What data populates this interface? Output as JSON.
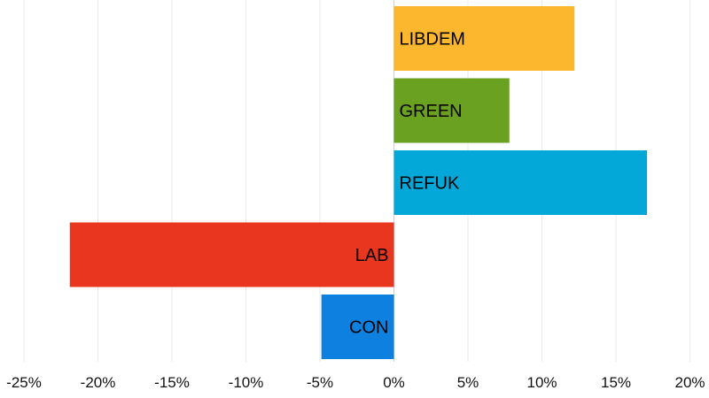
{
  "chart_data": {
    "type": "bar",
    "orientation": "horizontal",
    "title": "",
    "xlabel": "",
    "ylabel": "",
    "categories": [
      "LIBDEM",
      "GREEN",
      "REFUK",
      "LAB",
      "CON"
    ],
    "values": [
      12.2,
      7.8,
      17.1,
      -21.9,
      -4.9
    ],
    "colors": [
      "#fdb72f",
      "#6aa121",
      "#04a8d8",
      "#e8361f",
      "#0d80e0"
    ],
    "xlim": [
      -25,
      21
    ],
    "x_ticks": [
      -25,
      -20,
      -15,
      -10,
      -5,
      0,
      5,
      10,
      15,
      20
    ],
    "x_tick_labels": [
      "-25%",
      "-20%",
      "-15%",
      "-10%",
      "-5%",
      "0%",
      "5%",
      "10%",
      "15%",
      "20%"
    ],
    "grid": true,
    "legend": "none"
  }
}
